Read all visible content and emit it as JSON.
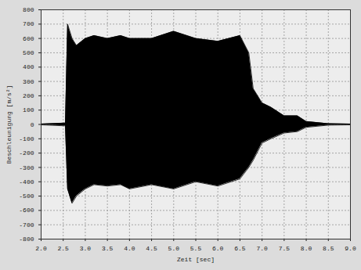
{
  "chart_data": {
    "type": "area",
    "xlabel": "Zeit [sec]",
    "ylabel": "Beschleunigung [m/s²]",
    "x": [
      2.0,
      2.55,
      2.6,
      2.7,
      2.8,
      3.0,
      3.2,
      3.5,
      3.8,
      4.0,
      4.5,
      5.0,
      5.5,
      6.0,
      6.5,
      6.7,
      6.8,
      7.0,
      7.2,
      7.5,
      7.8,
      8.0,
      8.5,
      9.0
    ],
    "values_max": [
      3,
      10,
      700,
      600,
      550,
      600,
      620,
      600,
      620,
      600,
      600,
      650,
      600,
      580,
      620,
      500,
      250,
      150,
      120,
      60,
      60,
      20,
      5,
      3
    ],
    "values_min": [
      -3,
      -10,
      -450,
      -550,
      -500,
      -450,
      -420,
      -430,
      -420,
      -450,
      -420,
      -450,
      -400,
      -430,
      -380,
      -300,
      -250,
      -130,
      -100,
      -60,
      -50,
      -20,
      -5,
      -3
    ],
    "color": "#000000",
    "xlim": [
      2.0,
      9.0
    ],
    "xticks": [
      {
        "value": 2.0,
        "label": "2.0"
      },
      {
        "value": 2.5,
        "label": "2.5"
      },
      {
        "value": 3.0,
        "label": "3.0"
      },
      {
        "value": 3.5,
        "label": "3.5"
      },
      {
        "value": 4.0,
        "label": "4.0"
      },
      {
        "value": 4.5,
        "label": "4.5"
      },
      {
        "value": 5.0,
        "label": "5.0"
      },
      {
        "value": 5.5,
        "label": "5.5"
      },
      {
        "value": 6.0,
        "label": "6.0"
      },
      {
        "value": 6.5,
        "label": "6.5"
      },
      {
        "value": 7.0,
        "label": "7.0"
      },
      {
        "value": 7.5,
        "label": "7.5"
      },
      {
        "value": 8.0,
        "label": "8.0"
      },
      {
        "value": 8.5,
        "label": "8.5"
      },
      {
        "value": 9.0,
        "label": "9.0"
      }
    ],
    "ylim": [
      -800,
      800
    ],
    "yticks": [
      -800,
      -700,
      -600,
      -500,
      -400,
      -300,
      -200,
      -100,
      0,
      100,
      200,
      300,
      400,
      500,
      600,
      700,
      800
    ],
    "grid": true
  }
}
